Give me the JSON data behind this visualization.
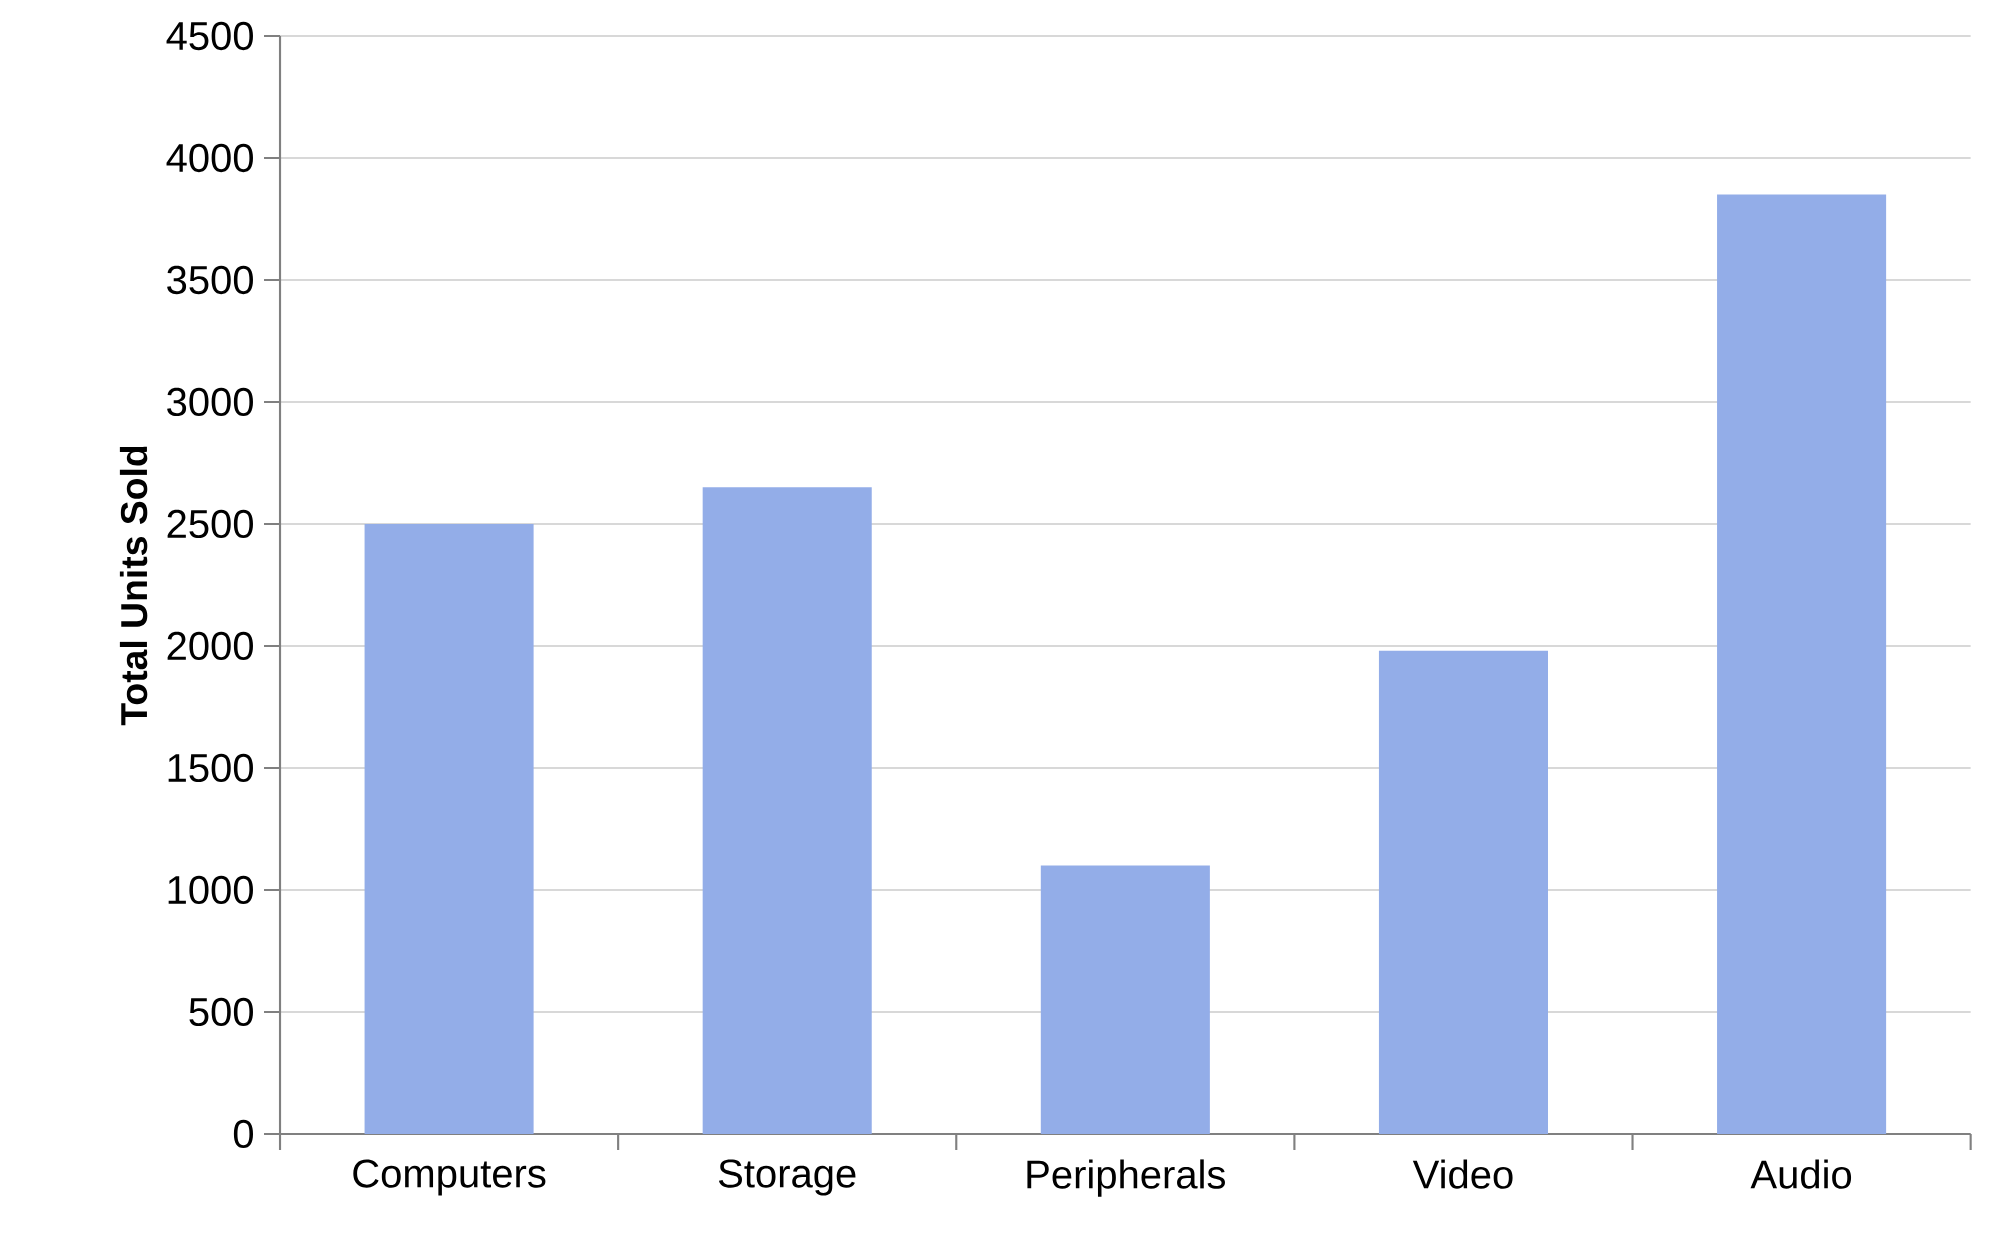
{
  "chart_data": {
    "type": "bar",
    "ylabel": "Total Units Sold",
    "categories": [
      "Computers",
      "Storage",
      "Peripherals",
      "Video",
      "Audio"
    ],
    "values": [
      2500,
      2650,
      1100,
      1980,
      3850
    ],
    "color": "#93ade8",
    "ylim": [
      0,
      4500
    ],
    "yticks": [
      0,
      500,
      1000,
      1500,
      2000,
      2500,
      3000,
      3500,
      4000,
      4500
    ],
    "grid": "y"
  }
}
